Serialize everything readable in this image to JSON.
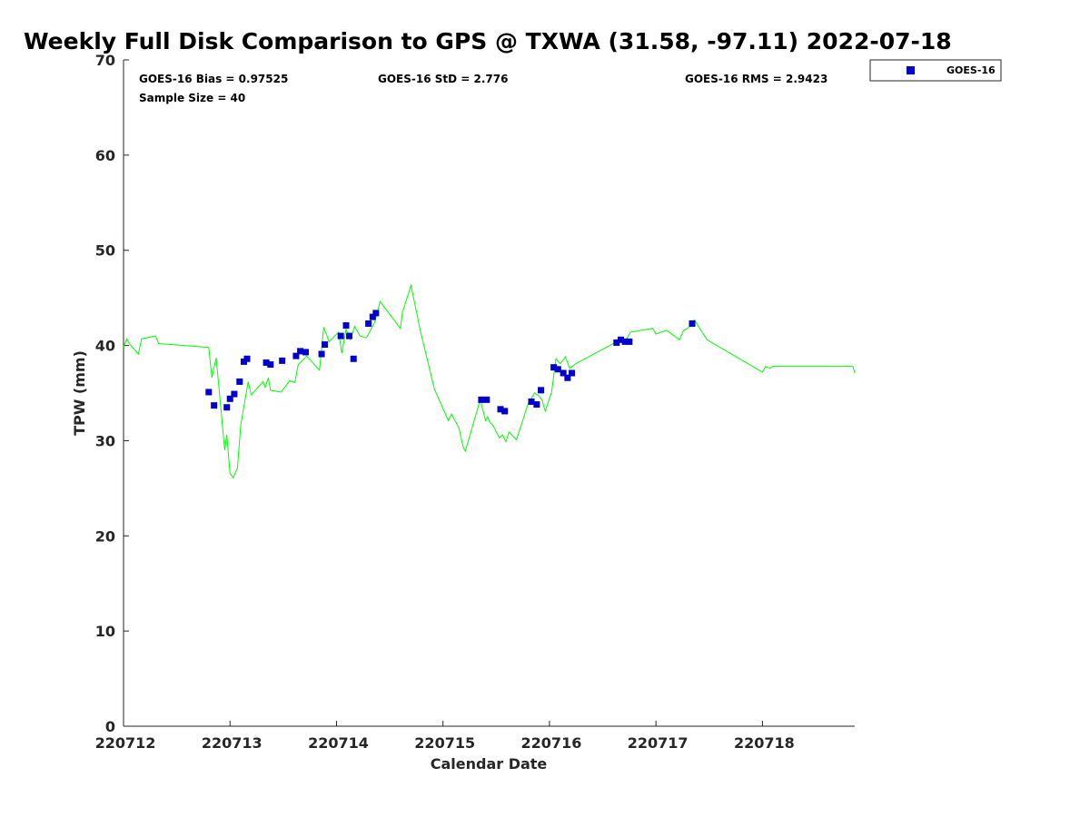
{
  "chart_data": {
    "type": "scatter",
    "title": "Weekly Full Disk Comparison to GPS @ TXWA (31.58, -97.11) 2022-07-18",
    "xlabel": "Calendar Date",
    "ylabel": "TPW (mm)",
    "xlim": [
      220712,
      220718.8667
    ],
    "ylim": [
      0,
      70
    ],
    "x_ticks": [
      220712,
      220713,
      220714,
      220715,
      220716,
      220717,
      220718
    ],
    "x_tick_labels": [
      "220712",
      "220713",
      "220714",
      "220715",
      "220716",
      "220717",
      "220718"
    ],
    "y_ticks": [
      0,
      10,
      20,
      30,
      40,
      50,
      60,
      70
    ],
    "y_tick_labels": [
      "0",
      "10",
      "20",
      "30",
      "40",
      "50",
      "60",
      "70"
    ],
    "grid": false,
    "legend_position": "outside-top-right",
    "stats": {
      "bias": "GOES-16 Bias = 0.97525",
      "std": "GOES-16 StD = 2.776",
      "rms": "GOES-16 RMS = 2.9423",
      "sample_size": "Sample Size = 40"
    },
    "series": [
      {
        "name": "GOES-16",
        "kind": "scatter",
        "marker": "square",
        "color": "#0000cc",
        "points": [
          [
            220712.8,
            35.1
          ],
          [
            220712.85,
            33.7
          ],
          [
            220712.97,
            33.5
          ],
          [
            220713.0,
            34.4
          ],
          [
            220713.04,
            34.9
          ],
          [
            220713.09,
            36.2
          ],
          [
            220713.13,
            38.3
          ],
          [
            220713.16,
            38.6
          ],
          [
            220713.34,
            38.2
          ],
          [
            220713.38,
            38.0
          ],
          [
            220713.49,
            38.4
          ],
          [
            220713.62,
            38.9
          ],
          [
            220713.66,
            39.4
          ],
          [
            220713.71,
            39.3
          ],
          [
            220713.86,
            39.1
          ],
          [
            220713.89,
            40.1
          ],
          [
            220714.04,
            41.0
          ],
          [
            220714.09,
            42.1
          ],
          [
            220714.12,
            41.0
          ],
          [
            220714.16,
            38.6
          ],
          [
            220714.3,
            42.3
          ],
          [
            220714.34,
            43.0
          ],
          [
            220714.37,
            43.4
          ],
          [
            220715.36,
            34.3
          ],
          [
            220715.41,
            34.3
          ],
          [
            220715.54,
            33.3
          ],
          [
            220715.58,
            33.1
          ],
          [
            220715.83,
            34.1
          ],
          [
            220715.88,
            33.8
          ],
          [
            220715.92,
            35.3
          ],
          [
            220716.04,
            37.7
          ],
          [
            220716.08,
            37.5
          ],
          [
            220716.13,
            37.1
          ],
          [
            220716.17,
            36.6
          ],
          [
            220716.21,
            37.1
          ],
          [
            220716.63,
            40.3
          ],
          [
            220716.67,
            40.6
          ],
          [
            220716.71,
            40.4
          ],
          [
            220716.75,
            40.4
          ],
          [
            220717.34,
            42.3
          ]
        ]
      },
      {
        "kind": "line",
        "color": "#00ff00",
        "points": [
          [
            220712.0,
            39.8
          ],
          [
            220712.03,
            40.7
          ],
          [
            220712.06,
            40.1
          ],
          [
            220712.14,
            39.1
          ],
          [
            220712.17,
            40.7
          ],
          [
            220712.3,
            41.0
          ],
          [
            220712.33,
            40.2
          ],
          [
            220712.8,
            39.8
          ],
          [
            220712.83,
            36.6
          ],
          [
            220712.87,
            38.7
          ],
          [
            220712.95,
            29.0
          ],
          [
            220712.97,
            30.6
          ],
          [
            220713.0,
            26.6
          ],
          [
            220713.03,
            26.1
          ],
          [
            220713.07,
            27.1
          ],
          [
            220713.1,
            31.6
          ],
          [
            220713.17,
            36.2
          ],
          [
            220713.2,
            34.8
          ],
          [
            220713.31,
            36.2
          ],
          [
            220713.33,
            35.6
          ],
          [
            220713.36,
            36.6
          ],
          [
            220713.38,
            35.3
          ],
          [
            220713.48,
            35.1
          ],
          [
            220713.52,
            35.7
          ],
          [
            220713.56,
            36.3
          ],
          [
            220713.61,
            36.1
          ],
          [
            220713.64,
            38.0
          ],
          [
            220713.68,
            38.4
          ],
          [
            220713.72,
            38.9
          ],
          [
            220713.84,
            37.4
          ],
          [
            220713.88,
            41.9
          ],
          [
            220713.93,
            40.4
          ],
          [
            220714.02,
            41.4
          ],
          [
            220714.05,
            39.2
          ],
          [
            220714.09,
            41.7
          ],
          [
            220714.13,
            40.6
          ],
          [
            220714.17,
            42.0
          ],
          [
            220714.22,
            41.0
          ],
          [
            220714.28,
            40.8
          ],
          [
            220714.32,
            41.6
          ],
          [
            220714.36,
            42.5
          ],
          [
            220714.41,
            44.6
          ],
          [
            220714.6,
            41.8
          ],
          [
            220714.62,
            43.5
          ],
          [
            220714.7,
            46.3
          ],
          [
            220714.79,
            41.4
          ],
          [
            220714.92,
            35.4
          ],
          [
            220715.05,
            32.1
          ],
          [
            220715.08,
            32.8
          ],
          [
            220715.15,
            31.3
          ],
          [
            220715.19,
            29.3
          ],
          [
            220715.21,
            28.9
          ],
          [
            220715.35,
            34.3
          ],
          [
            220715.4,
            32.1
          ],
          [
            220715.42,
            32.5
          ],
          [
            220715.44,
            31.9
          ],
          [
            220715.47,
            31.6
          ],
          [
            220715.53,
            30.3
          ],
          [
            220715.56,
            30.6
          ],
          [
            220715.59,
            29.9
          ],
          [
            220715.62,
            30.9
          ],
          [
            220715.69,
            30.1
          ],
          [
            220715.8,
            33.9
          ],
          [
            220715.86,
            35.0
          ],
          [
            220715.9,
            34.7
          ],
          [
            220715.93,
            34.3
          ],
          [
            220715.96,
            33.1
          ],
          [
            220716.02,
            35.1
          ],
          [
            220716.06,
            38.6
          ],
          [
            220716.1,
            38.1
          ],
          [
            220716.15,
            38.8
          ],
          [
            220716.19,
            37.6
          ],
          [
            220716.25,
            38.1
          ],
          [
            220716.65,
            40.5
          ],
          [
            220716.72,
            40.6
          ],
          [
            220716.76,
            41.4
          ],
          [
            220716.97,
            41.8
          ],
          [
            220717.0,
            41.2
          ],
          [
            220717.1,
            41.6
          ],
          [
            220717.22,
            40.6
          ],
          [
            220717.26,
            41.6
          ],
          [
            220717.3,
            41.8
          ],
          [
            220717.36,
            42.7
          ],
          [
            220717.48,
            40.6
          ],
          [
            220718.0,
            37.2
          ],
          [
            220718.03,
            37.8
          ],
          [
            220718.07,
            37.6
          ],
          [
            220718.1,
            37.8
          ],
          [
            220718.85,
            37.8
          ],
          [
            220718.8667,
            37.1
          ]
        ]
      }
    ]
  }
}
